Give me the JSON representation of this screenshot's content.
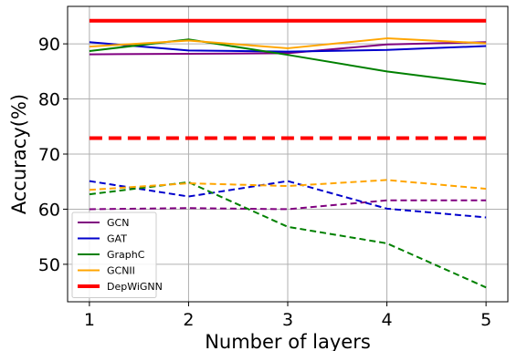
{
  "chart_data": {
    "type": "line",
    "xlabel": "Number of layers",
    "ylabel": "Accuracy(%)",
    "x": [
      1,
      2,
      3,
      4,
      5
    ],
    "xlim": [
      0.78,
      5.22
    ],
    "ylim": [
      43.2,
      96.8
    ],
    "x_ticks": [
      1,
      2,
      3,
      4,
      5
    ],
    "y_ticks": [
      50,
      60,
      70,
      80,
      90
    ],
    "grid": true,
    "legend_position": "lower-left",
    "legend": [
      {
        "name": "GCN",
        "color": "#800080",
        "width": 2
      },
      {
        "name": "GAT",
        "color": "#0000cc",
        "width": 2
      },
      {
        "name": "GraphC",
        "color": "#008000",
        "width": 2
      },
      {
        "name": "GCNII",
        "color": "#ffa500",
        "width": 2
      },
      {
        "name": "DepWiGNN",
        "color": "#ff0000",
        "width": 4
      }
    ],
    "series": [
      {
        "name": "GCN",
        "color": "#800080",
        "style": "solid",
        "width": 2,
        "values": [
          88.1,
          88.2,
          88.3,
          89.9,
          90.3
        ]
      },
      {
        "name": "GAT",
        "color": "#0000cc",
        "style": "solid",
        "width": 2,
        "values": [
          90.3,
          88.8,
          88.6,
          88.9,
          89.6
        ]
      },
      {
        "name": "GraphC",
        "color": "#008000",
        "style": "solid",
        "width": 2,
        "values": [
          88.7,
          90.8,
          88.0,
          85.0,
          82.7
        ]
      },
      {
        "name": "GCNII",
        "color": "#ffa500",
        "style": "solid",
        "width": 2,
        "values": [
          89.5,
          90.6,
          89.2,
          91.0,
          90.1
        ]
      },
      {
        "name": "DepWiGNN",
        "color": "#ff0000",
        "style": "solid",
        "width": 4,
        "values": [
          94.2,
          94.2,
          94.2,
          94.2,
          94.2
        ]
      },
      {
        "name": "GCN",
        "color": "#800080",
        "style": "dashed",
        "width": 2,
        "values": [
          60.0,
          60.2,
          60.0,
          61.6,
          61.6
        ]
      },
      {
        "name": "GAT",
        "color": "#0000cc",
        "style": "dashed",
        "width": 2,
        "values": [
          65.1,
          62.3,
          65.1,
          60.1,
          58.5
        ]
      },
      {
        "name": "GraphC",
        "color": "#008000",
        "style": "dashed",
        "width": 2,
        "values": [
          62.7,
          64.9,
          56.8,
          53.8,
          45.8
        ]
      },
      {
        "name": "GCNII",
        "color": "#ffa500",
        "style": "dashed",
        "width": 2,
        "values": [
          63.5,
          64.7,
          64.2,
          65.3,
          63.7
        ]
      },
      {
        "name": "DepWiGNN",
        "color": "#ff0000",
        "style": "dashed",
        "width": 4,
        "values": [
          72.9,
          72.9,
          72.9,
          72.9,
          72.9
        ]
      }
    ]
  }
}
